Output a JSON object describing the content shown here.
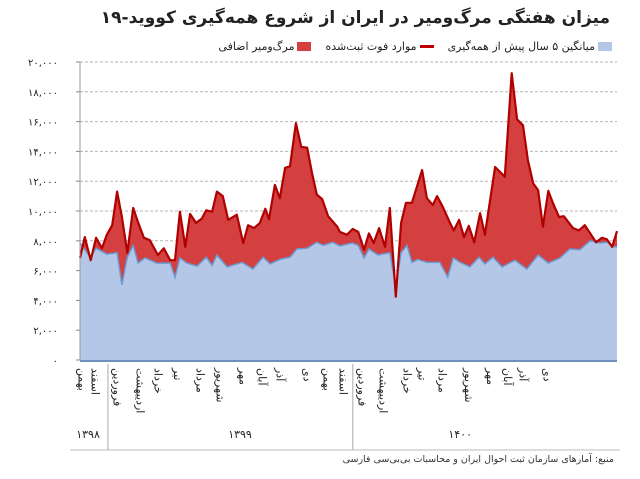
{
  "title": "میزان هفتگی مرگ‌ومیر در ایران از شروع همه‌گیری کووید-۱۹",
  "legend": [
    {
      "label": "میانگین ۵ سال پیش از همه‌گیری",
      "color": "#b4c7e7",
      "kind": "area"
    },
    {
      "label": "موارد فوت ثبت‌شده",
      "color": "#c00000",
      "kind": "line"
    },
    {
      "label": "مرگ‌ومیر اضافی",
      "color": "#d43f3f",
      "kind": "area"
    }
  ],
  "source": "منبع: آمارهای سازمان ثبت احوال ایران و محاسبات بی‌بی‌سی فارسی",
  "chart_data": {
    "type": "area",
    "title": "میزان هفتگی مرگ‌ومیر در ایران از شروع همه‌گیری کووید-۱۹",
    "xlabel": "",
    "ylabel": "",
    "ylim": [
      0,
      20000
    ],
    "xlim": [
      0,
      100
    ],
    "grid": true,
    "legend_position": "top-right",
    "yticks": [
      {
        "value": 0,
        "label": "۰"
      },
      {
        "value": 2000,
        "label": "۲,۰۰۰"
      },
      {
        "value": 4000,
        "label": "۴,۰۰۰"
      },
      {
        "value": 6000,
        "label": "۶,۰۰۰"
      },
      {
        "value": 8000,
        "label": "۸,۰۰۰"
      },
      {
        "value": 10000,
        "label": "۱۰,۰۰۰"
      },
      {
        "value": 12000,
        "label": "۱۲,۰۰۰"
      },
      {
        "value": 14000,
        "label": "۱۴,۰۰۰"
      },
      {
        "value": 16000,
        "label": "۱۶,۰۰۰"
      },
      {
        "value": 18000,
        "label": "۱۸,۰۰۰"
      },
      {
        "value": 20000,
        "label": "۲۰,۰۰۰"
      }
    ],
    "month_ticks": [
      {
        "week": 0.4,
        "label": "بهمن"
      },
      {
        "week": 2.8,
        "label": "اسفند"
      },
      {
        "week": 6.9,
        "label": "فروردین"
      },
      {
        "week": 11.2,
        "label": "اردیبهشت"
      },
      {
        "week": 14.5,
        "label": "خرداد"
      },
      {
        "week": 18.2,
        "label": "تیر"
      },
      {
        "week": 22.3,
        "label": "مرداد"
      },
      {
        "week": 26.1,
        "label": "شهریور"
      },
      {
        "week": 30.4,
        "label": "مهر"
      },
      {
        "week": 33.9,
        "label": "آبان"
      },
      {
        "week": 37.2,
        "label": "آذر"
      },
      {
        "week": 42.3,
        "label": "دی"
      },
      {
        "week": 46.0,
        "label": "بهمن"
      },
      {
        "week": 49.0,
        "label": "اسفند"
      },
      {
        "week": 52.5,
        "label": "فروردین"
      },
      {
        "week": 56.4,
        "label": "اردیبهشت"
      },
      {
        "week": 60.9,
        "label": "خرداد"
      },
      {
        "week": 63.7,
        "label": "تیر"
      },
      {
        "week": 67.4,
        "label": "مرداد"
      },
      {
        "week": 72.3,
        "label": "شهریور"
      },
      {
        "week": 76.4,
        "label": "مهر"
      },
      {
        "week": 79.6,
        "label": "آبان"
      },
      {
        "week": 82.5,
        "label": "آذر"
      },
      {
        "week": 87.0,
        "label": "دی"
      }
    ],
    "year_ticks": [
      {
        "week": 1.5,
        "label": "۱۳۹۸"
      },
      {
        "week": 29.8,
        "label": "۱۳۹۹"
      },
      {
        "week": 70.8,
        "label": "۱۴۰۰"
      }
    ],
    "year_dividers": [
      5.2,
      50.8
    ],
    "series": [
      {
        "name": "موارد فوت ثبت‌شده",
        "points": [
          [
            0,
            6850
          ],
          [
            0.9,
            8250
          ],
          [
            2.0,
            6700
          ],
          [
            3.0,
            8200
          ],
          [
            4.1,
            7500
          ],
          [
            5.0,
            8400
          ],
          [
            6.0,
            9050
          ],
          [
            6.9,
            11300
          ],
          [
            7.8,
            9600
          ],
          [
            8.8,
            7200
          ],
          [
            9.9,
            10200
          ],
          [
            10.8,
            9250
          ],
          [
            11.9,
            8200
          ],
          [
            13.0,
            8050
          ],
          [
            14.5,
            7050
          ],
          [
            15.6,
            7500
          ],
          [
            16.8,
            6700
          ],
          [
            17.7,
            6700
          ],
          [
            18.6,
            9950
          ],
          [
            19.6,
            7600
          ],
          [
            20.5,
            9800
          ],
          [
            21.6,
            9200
          ],
          [
            22.7,
            9500
          ],
          [
            23.5,
            10050
          ],
          [
            24.6,
            9950
          ],
          [
            25.5,
            11300
          ],
          [
            26.6,
            11000
          ],
          [
            27.6,
            9400
          ],
          [
            29.2,
            9750
          ],
          [
            30.4,
            7850
          ],
          [
            31.3,
            9050
          ],
          [
            32.4,
            8850
          ],
          [
            33.5,
            9200
          ],
          [
            34.5,
            10150
          ],
          [
            35.2,
            9450
          ],
          [
            36.3,
            11750
          ],
          [
            37.2,
            10850
          ],
          [
            38.2,
            12900
          ],
          [
            39.1,
            13000
          ],
          [
            40.2,
            15900
          ],
          [
            41.2,
            14300
          ],
          [
            42.3,
            14250
          ],
          [
            43.2,
            12550
          ],
          [
            44.1,
            11100
          ],
          [
            45.1,
            10800
          ],
          [
            46.2,
            9650
          ],
          [
            47.9,
            8950
          ],
          [
            48.4,
            8600
          ],
          [
            49.7,
            8400
          ],
          [
            50.8,
            8800
          ],
          [
            51.8,
            8600
          ],
          [
            52.9,
            7400
          ],
          [
            53.8,
            8500
          ],
          [
            54.7,
            7850
          ],
          [
            55.7,
            8850
          ],
          [
            56.8,
            7600
          ],
          [
            57.7,
            10200
          ],
          [
            58.8,
            4250
          ],
          [
            59.8,
            9200
          ],
          [
            60.7,
            10550
          ],
          [
            61.8,
            10550
          ],
          [
            63.7,
            12750
          ],
          [
            64.6,
            10850
          ],
          [
            65.7,
            10400
          ],
          [
            66.5,
            11000
          ],
          [
            67.6,
            10250
          ],
          [
            68.9,
            9200
          ],
          [
            69.6,
            8700
          ],
          [
            70.6,
            9400
          ],
          [
            71.5,
            8250
          ],
          [
            72.4,
            9000
          ],
          [
            73.4,
            7900
          ],
          [
            74.5,
            9850
          ],
          [
            75.4,
            8400
          ],
          [
            77.3,
            12950
          ],
          [
            79.1,
            12300
          ],
          [
            80.4,
            19250
          ],
          [
            81.4,
            16150
          ],
          [
            82.5,
            15750
          ],
          [
            83.4,
            13400
          ],
          [
            84.4,
            11850
          ],
          [
            85.3,
            11400
          ],
          [
            86.2,
            8950
          ],
          [
            87.2,
            11350
          ],
          [
            88.1,
            10500
          ],
          [
            89.2,
            9600
          ],
          [
            90.1,
            9650
          ],
          [
            91.8,
            8850
          ],
          [
            92.9,
            8700
          ],
          [
            94.0,
            9050
          ],
          [
            95.2,
            8400
          ],
          [
            96.1,
            7900
          ],
          [
            97.2,
            8200
          ],
          [
            98.1,
            8100
          ],
          [
            99.1,
            7600
          ],
          [
            100,
            8650
          ]
        ]
      },
      {
        "name": "میانگین ۵ سال پیش از همه‌گیری",
        "points": [
          [
            0,
            7850
          ],
          [
            1.9,
            6900
          ],
          [
            3.0,
            7500
          ],
          [
            5.0,
            7100
          ],
          [
            6.9,
            7200
          ],
          [
            7.8,
            5050
          ],
          [
            8.8,
            6900
          ],
          [
            9.9,
            7700
          ],
          [
            10.8,
            6500
          ],
          [
            12.1,
            6850
          ],
          [
            14.3,
            6500
          ],
          [
            16.8,
            6500
          ],
          [
            17.7,
            5550
          ],
          [
            18.6,
            6850
          ],
          [
            19.9,
            6500
          ],
          [
            21.8,
            6300
          ],
          [
            23.5,
            6900
          ],
          [
            24.6,
            6350
          ],
          [
            25.5,
            7050
          ],
          [
            27.4,
            6250
          ],
          [
            30.2,
            6550
          ],
          [
            32.2,
            6100
          ],
          [
            34.1,
            6900
          ],
          [
            35.4,
            6450
          ],
          [
            37.2,
            6750
          ],
          [
            39.1,
            6900
          ],
          [
            40.4,
            7450
          ],
          [
            42.3,
            7500
          ],
          [
            44.1,
            7900
          ],
          [
            45.3,
            7700
          ],
          [
            47.1,
            7900
          ],
          [
            48.4,
            7650
          ],
          [
            50.7,
            7850
          ],
          [
            51.8,
            7700
          ],
          [
            52.9,
            6850
          ],
          [
            53.8,
            7450
          ],
          [
            55.5,
            7050
          ],
          [
            57.7,
            7200
          ],
          [
            58.8,
            4900
          ],
          [
            59.8,
            7200
          ],
          [
            60.9,
            7700
          ],
          [
            61.8,
            6550
          ],
          [
            62.9,
            6750
          ],
          [
            64.6,
            6550
          ],
          [
            67.0,
            6550
          ],
          [
            68.5,
            5550
          ],
          [
            69.5,
            6850
          ],
          [
            70.8,
            6550
          ],
          [
            72.6,
            6250
          ],
          [
            74.3,
            6900
          ],
          [
            75.4,
            6450
          ],
          [
            76.9,
            6900
          ],
          [
            78.6,
            6250
          ],
          [
            81.0,
            6700
          ],
          [
            83.2,
            6100
          ],
          [
            85.3,
            7050
          ],
          [
            87.2,
            6500
          ],
          [
            89.4,
            6850
          ],
          [
            91.2,
            7450
          ],
          [
            93.1,
            7400
          ],
          [
            95.0,
            8000
          ],
          [
            96.8,
            7850
          ],
          [
            98.3,
            7900
          ],
          [
            99.1,
            7600
          ],
          [
            100,
            7600
          ]
        ]
      }
    ]
  }
}
